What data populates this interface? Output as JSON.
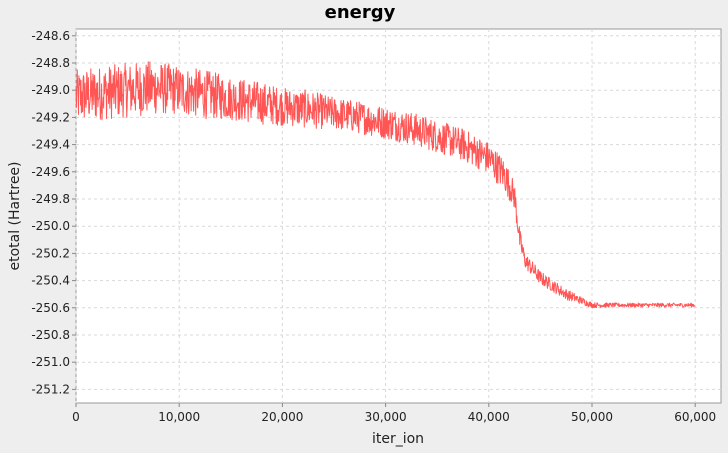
{
  "chart_data": {
    "type": "line",
    "title": "energy",
    "xlabel": "iter_ion",
    "ylabel": "etotal (Hartree)",
    "xlim": [
      0,
      62500
    ],
    "ylim": [
      -251.3,
      -248.55
    ],
    "x_ticks": [
      0,
      10000,
      20000,
      30000,
      40000,
      50000,
      60000
    ],
    "x_tick_labels": [
      "0",
      "10,000",
      "20,000",
      "30,000",
      "40,000",
      "50,000",
      "60,000"
    ],
    "y_ticks": [
      -248.6,
      -248.8,
      -249.0,
      -249.2,
      -249.4,
      -249.6,
      -249.8,
      -250.0,
      -250.2,
      -250.4,
      -250.6,
      -250.8,
      -251.0,
      -251.2
    ],
    "y_tick_labels": [
      "-248.6",
      "-248.8",
      "-249.0",
      "-249.2",
      "-249.4",
      "-249.6",
      "-249.8",
      "-250.0",
      "-250.2",
      "-250.4",
      "-250.6",
      "-250.8",
      "-251.0",
      "-251.2"
    ],
    "grid": true,
    "legend": "none",
    "series": [
      {
        "color": "#ff5555",
        "x": [
          0,
          2500,
          5000,
          7500,
          10000,
          12500,
          15000,
          17500,
          20000,
          22500,
          25000,
          27500,
          30000,
          32500,
          35000,
          37500,
          40000,
          41500,
          42500,
          43000,
          43500,
          45000,
          47500,
          50000,
          52500,
          55000,
          57500,
          60000
        ],
        "center": [
          -249.05,
          -249.02,
          -249.0,
          -248.98,
          -249.0,
          -249.03,
          -249.06,
          -249.09,
          -249.12,
          -249.14,
          -249.17,
          -249.2,
          -249.24,
          -249.28,
          -249.34,
          -249.4,
          -249.5,
          -249.62,
          -249.78,
          -250.1,
          -250.25,
          -250.38,
          -250.5,
          -250.58,
          -250.58,
          -250.58,
          -250.58,
          -250.58
        ],
        "spread": [
          0.2,
          0.2,
          0.2,
          0.2,
          0.18,
          0.18,
          0.16,
          0.16,
          0.14,
          0.14,
          0.12,
          0.12,
          0.12,
          0.12,
          0.12,
          0.12,
          0.12,
          0.12,
          0.1,
          0.08,
          0.06,
          0.05,
          0.04,
          0.02,
          0.015,
          0.015,
          0.015,
          0.015
        ]
      }
    ]
  }
}
